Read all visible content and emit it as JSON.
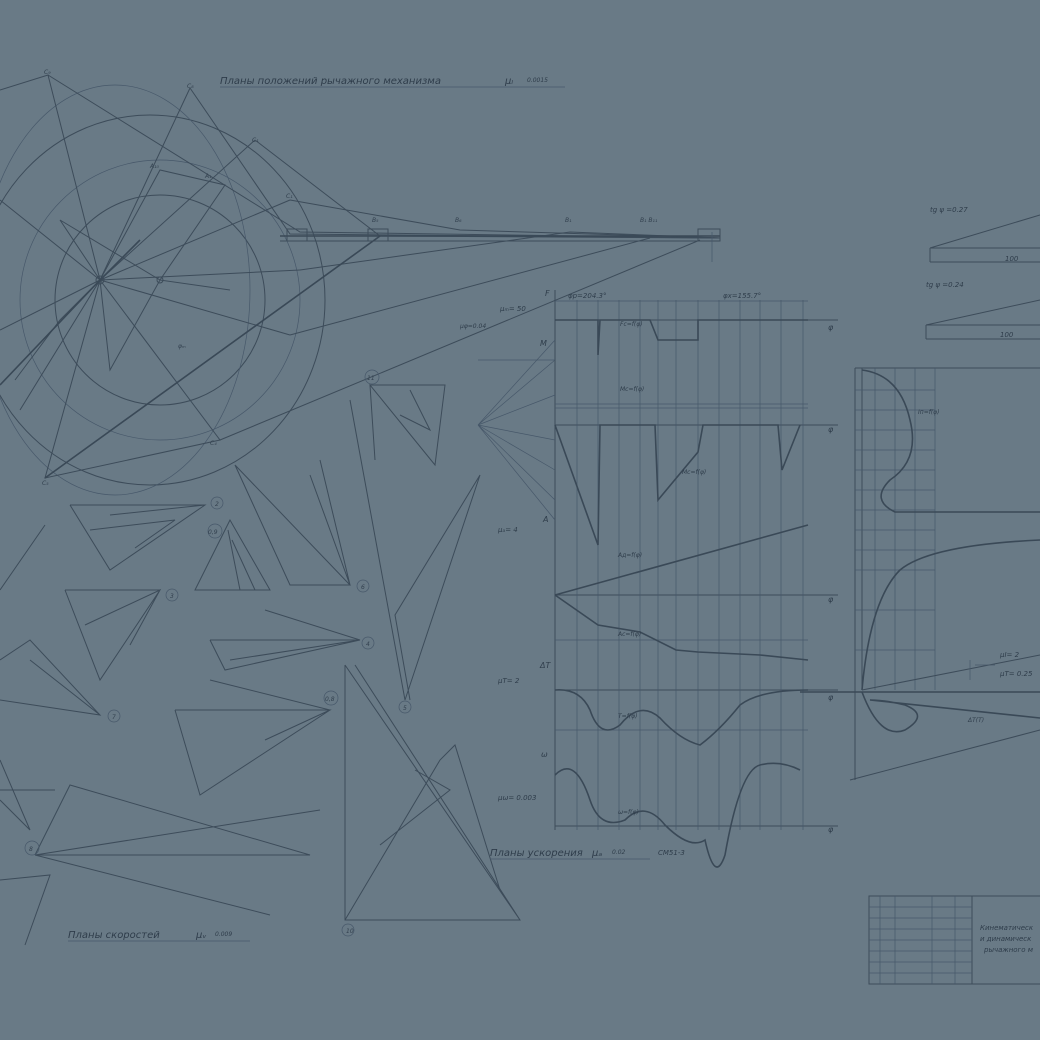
{
  "colors": {
    "background": "#697a86",
    "ink": "#3d4c5a"
  },
  "titles": {
    "positions": "Планы положений рычажного механизма",
    "positions_scale": "0.0015",
    "velocities": "Планы скоростей",
    "velocities_scale": "0.009",
    "accelerations": "Планы ускорения",
    "accelerations_scale": "0.02",
    "accelerations_note": "СМ51-3"
  },
  "graph": {
    "phi_work": "φр=204.3°",
    "phi_idle": "φх=155.7°",
    "mu_m": "μₘ= 50",
    "mu_phi": "μφ=0.04",
    "mu_a": "μₐ= 4",
    "mu_t": "μT= 2",
    "mu_w": "μω= 0.003",
    "axis_phi": "φ",
    "axis_f": "F",
    "axis_m": "M",
    "axis_a": "A",
    "axis_dt": "ΔT",
    "axis_w": "ω",
    "curve_fc": "Fc=f(φ)",
    "curve_mc": "Mc=f(φ)",
    "curve_ac": "Ac=f(φ)",
    "curve_ad": "Aд=f(φ)",
    "curve_t": "T=f(φ)",
    "curve_w": "ω=f(φ)"
  },
  "right": {
    "tg1": "tg ψ =0.27",
    "tg2": "tg ψ =0.24",
    "len1": "100",
    "len2": "100",
    "curve_iprime": "Iп=f(φ)",
    "curve_dt": "ΔT(T)",
    "mu_r1": "μI= 2",
    "mu_r2": "μT= 0.25"
  },
  "stamp": {
    "line1": "Кинематическ",
    "line2": "и динамическ",
    "line3": "рычажного м"
  },
  "plans": {
    "labels": [
      "2",
      "3",
      "4",
      "5",
      "6",
      "7",
      "8",
      "10",
      "0,9",
      "0,8",
      "11"
    ]
  }
}
